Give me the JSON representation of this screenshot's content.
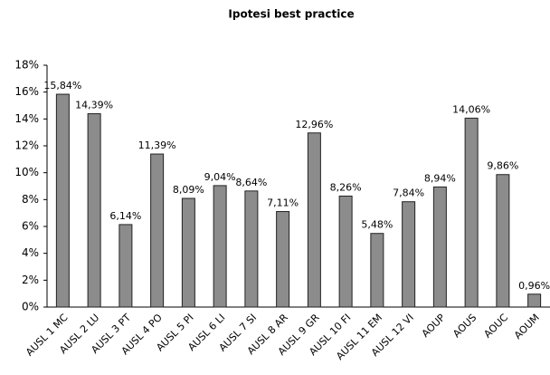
{
  "chart_data": {
    "type": "bar",
    "title": "Ipotesi best practice",
    "categories": [
      "AUSL 1 MC",
      "AUSL 2 LU",
      "AUSL 3 PT",
      "AUSL 4 PO",
      "AUSL 5 PI",
      "AUSL 6 LI",
      "AUSL 7 SI",
      "AUSL 8 AR",
      "AUSL 9 GR",
      "AUSL 10 FI",
      "AUSL 11 EM",
      "AUSL 12 VI",
      "AOUP",
      "AOUS",
      "AOUC",
      "AOUM"
    ],
    "values": [
      15.84,
      14.39,
      6.14,
      11.39,
      8.09,
      9.04,
      8.64,
      7.11,
      12.96,
      8.26,
      5.48,
      7.84,
      8.94,
      14.06,
      9.86,
      0.96
    ],
    "value_labels": [
      "15,84%",
      "14,39%",
      "6,14%",
      "11,39%",
      "8,09%",
      "9,04%",
      "8,64%",
      "7,11%",
      "12,96%",
      "8,26%",
      "5,48%",
      "7,84%",
      "8,94%",
      "14,06%",
      "9,86%",
      "0,96%"
    ],
    "color": "#8c8c8c",
    "ylim": [
      0,
      18
    ],
    "yticks": [
      {
        "value": 0,
        "label": "0%"
      },
      {
        "value": 2,
        "label": "2%"
      },
      {
        "value": 4,
        "label": "4%"
      },
      {
        "value": 6,
        "label": "6%"
      },
      {
        "value": 8,
        "label": "8%"
      },
      {
        "value": 10,
        "label": "10%"
      },
      {
        "value": 12,
        "label": "12%"
      },
      {
        "value": 14,
        "label": "14%"
      },
      {
        "value": 16,
        "label": "16%"
      },
      {
        "value": 18,
        "label": "18%"
      }
    ],
    "grid": false
  }
}
